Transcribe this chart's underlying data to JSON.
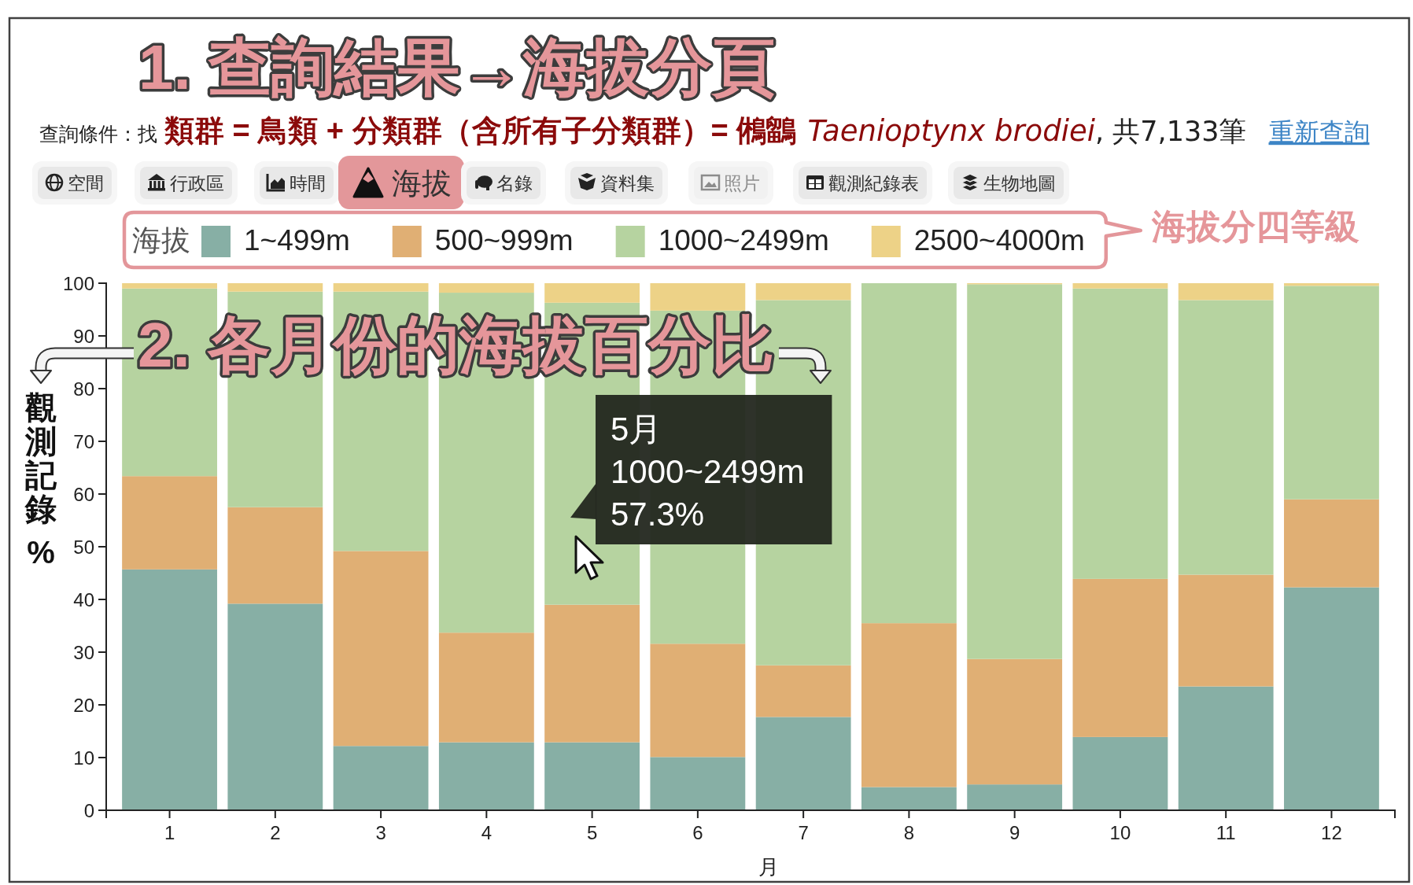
{
  "chart_data": {
    "type": "bar",
    "stacked": true,
    "title": "1. 查詢結果→海拔分頁",
    "categories": [
      "1",
      "2",
      "3",
      "4",
      "5",
      "6",
      "7",
      "8",
      "9",
      "10",
      "11",
      "12"
    ],
    "xlabel": "月",
    "ylabel": "觀測記錄 %",
    "legend_title": "海拔",
    "legend": "top",
    "series": [
      {
        "name": "1~499m",
        "color": "#87afa5",
        "values": [
          45.7,
          39.2,
          12.2,
          12.9,
          12.9,
          10.1,
          17.7,
          4.4,
          4.9,
          13.9,
          23.5,
          42.3
        ]
      },
      {
        "name": "500~999m",
        "color": "#e0af74",
        "values": [
          17.7,
          18.3,
          37.0,
          20.8,
          26.1,
          21.5,
          9.8,
          31.1,
          23.8,
          30.0,
          21.2,
          16.7
        ]
      },
      {
        "name": "1000~2499m",
        "color": "#b6d3a0",
        "values": [
          35.6,
          40.9,
          49.2,
          64.5,
          57.3,
          63.2,
          69.3,
          64.5,
          71.1,
          55.1,
          52.1,
          40.5
        ]
      },
      {
        "name": "2500~4000m",
        "color": "#edd287",
        "values": [
          1.0,
          1.6,
          1.6,
          1.8,
          3.7,
          5.2,
          3.2,
          0,
          0.2,
          1.0,
          3.2,
          0.5
        ]
      }
    ],
    "ylim": [
      0,
      100
    ],
    "yticks": [
      0,
      10,
      20,
      30,
      40,
      50,
      60,
      70,
      80,
      90,
      100
    ],
    "annotations": [
      "查詢條件：找",
      "類群 = 鳥類 + 分類群（含所有子分類群）= 鵂鶹",
      "Taenioptynx brodiei",
      ", 共7,133筆",
      "重新查詢",
      "空間",
      "行政區",
      "時間",
      "海拔",
      "名錄",
      "資料集",
      "照片",
      "觀測紀錄表",
      "生物地圖",
      "海拔分四等級",
      "2. 各月份的海拔百分比",
      "5月\n1000~2499m\n57.3%"
    ]
  }
}
